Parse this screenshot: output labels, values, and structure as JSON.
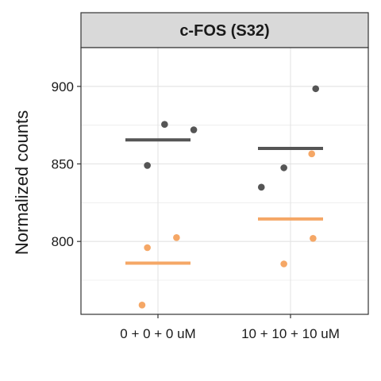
{
  "chart_data": {
    "type": "scatter",
    "title": "c-FOS (S32)",
    "xlabel": "",
    "ylabel": "Normalized counts",
    "categories": [
      "0 + 0 + 0 uM",
      "10 + 10 + 10 uM"
    ],
    "ylim": [
      753,
      925
    ],
    "yticks": [
      800,
      850,
      900
    ],
    "grid": true,
    "legend": "none",
    "series": [
      {
        "color": "#555555",
        "points": [
          {
            "category": "0 + 0 + 0 uM",
            "jitter": -0.08,
            "y": 849
          },
          {
            "category": "0 + 0 + 0 uM",
            "jitter": 0.05,
            "y": 875.5
          },
          {
            "category": "0 + 0 + 0 uM",
            "jitter": 0.27,
            "y": 872
          },
          {
            "category": "10 + 10 + 10 uM",
            "jitter": -0.22,
            "y": 835
          },
          {
            "category": "10 + 10 + 10 uM",
            "jitter": -0.05,
            "y": 847.5
          },
          {
            "category": "10 + 10 + 10 uM",
            "jitter": 0.19,
            "y": 898.5
          }
        ],
        "means": [
          {
            "category": "0 + 0 + 0 uM",
            "y": 865.5
          },
          {
            "category": "10 + 10 + 10 uM",
            "y": 860
          }
        ]
      },
      {
        "color": "#F5A766",
        "points": [
          {
            "category": "0 + 0 + 0 uM",
            "jitter": -0.12,
            "y": 759
          },
          {
            "category": "0 + 0 + 0 uM",
            "jitter": -0.08,
            "y": 796
          },
          {
            "category": "0 + 0 + 0 uM",
            "jitter": 0.14,
            "y": 802.5
          },
          {
            "category": "10 + 10 + 10 uM",
            "jitter": -0.05,
            "y": 785.5
          },
          {
            "category": "10 + 10 + 10 uM",
            "jitter": 0.17,
            "y": 802
          },
          {
            "category": "10 + 10 + 10 uM",
            "jitter": 0.16,
            "y": 856.5
          }
        ],
        "means": [
          {
            "category": "0 + 0 + 0 uM",
            "y": 786
          },
          {
            "category": "10 + 10 + 10 uM",
            "y": 814.5
          }
        ]
      }
    ]
  }
}
